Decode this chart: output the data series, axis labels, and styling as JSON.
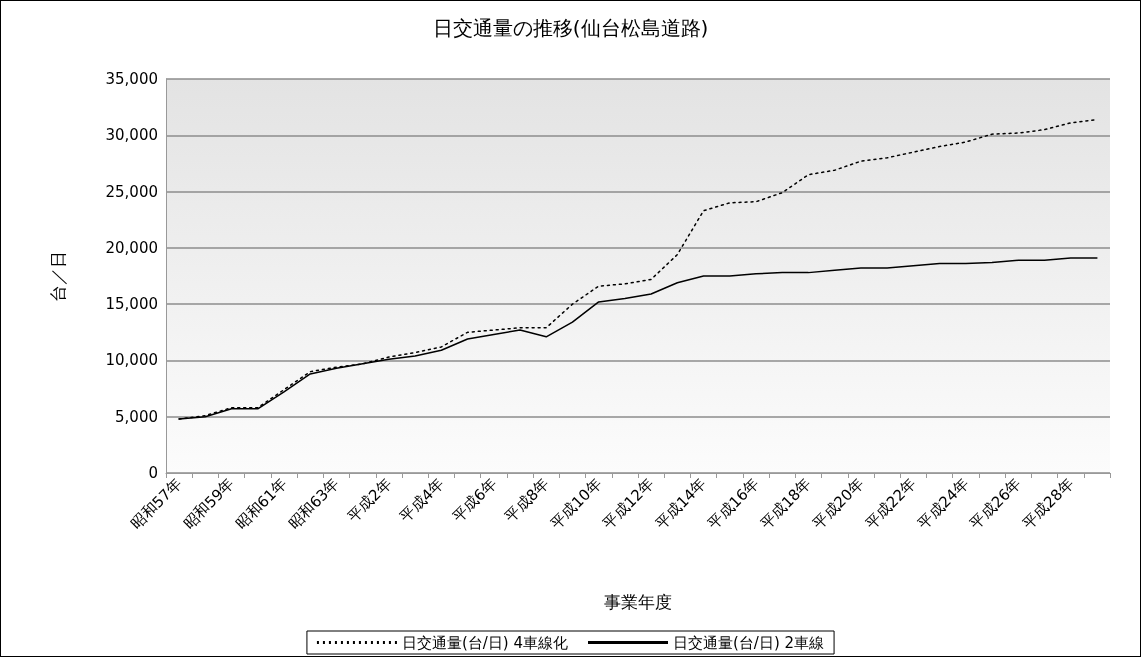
{
  "chart_data": {
    "type": "line",
    "title": "日交通量の推移(仙台松島道路)",
    "xlabel": "事業年度",
    "ylabel": "台／日",
    "categories": [
      "昭和57年",
      null,
      "昭和59年",
      null,
      "昭和61年",
      null,
      "昭和63年",
      null,
      "平成2年",
      null,
      "平成4年",
      null,
      "平成6年",
      null,
      "平成8年",
      null,
      "平成10年",
      null,
      "平成12年",
      null,
      "平成14年",
      null,
      "平成16年",
      null,
      "平成18年",
      null,
      "平成20年",
      null,
      "平成22年",
      null,
      "平成24年",
      null,
      "平成26年",
      null,
      "平成28年",
      null
    ],
    "series": [
      {
        "name": "日交通量(台/日) 4車線化",
        "color": "#000000",
        "line_style": "dotted",
        "values": [
          4800,
          5100,
          5800,
          5800,
          7400,
          9000,
          9400,
          9700,
          10300,
          10700,
          11200,
          12500,
          12700,
          12900,
          12900,
          15000,
          16600,
          16800,
          17200,
          19400,
          23300,
          24000,
          24100,
          24900,
          26500,
          26900,
          27700,
          28000,
          28500,
          29000,
          29400,
          30100,
          30200,
          30500,
          31100,
          31400
        ]
      },
      {
        "name": "日交通量(台/日) 2車線",
        "color": "#000000",
        "line_style": "solid",
        "values": [
          4800,
          5000,
          5700,
          5700,
          7200,
          8800,
          9300,
          9700,
          10100,
          10400,
          10900,
          11900,
          12300,
          12700,
          12100,
          13400,
          15200,
          15500,
          15900,
          16900,
          17500,
          17500,
          17700,
          17800,
          17800,
          18000,
          18200,
          18200,
          18400,
          18600,
          18600,
          18700,
          18900,
          18900,
          19100,
          19100
        ]
      }
    ],
    "ylim": [
      0,
      35000
    ],
    "yticks": [
      0,
      {
        "value": 5000,
        "label": "5,000"
      },
      {
        "value": 10000,
        "label": "10,000"
      },
      {
        "value": 15000,
        "label": "15,000"
      },
      {
        "value": 20000,
        "label": "20,000"
      },
      {
        "value": 25000,
        "label": "25,000"
      },
      {
        "value": 30000,
        "label": "30,000"
      },
      {
        "value": 35000,
        "label": "35,000"
      }
    ],
    "grid": "y",
    "legend": "bottom",
    "marker": "none"
  }
}
